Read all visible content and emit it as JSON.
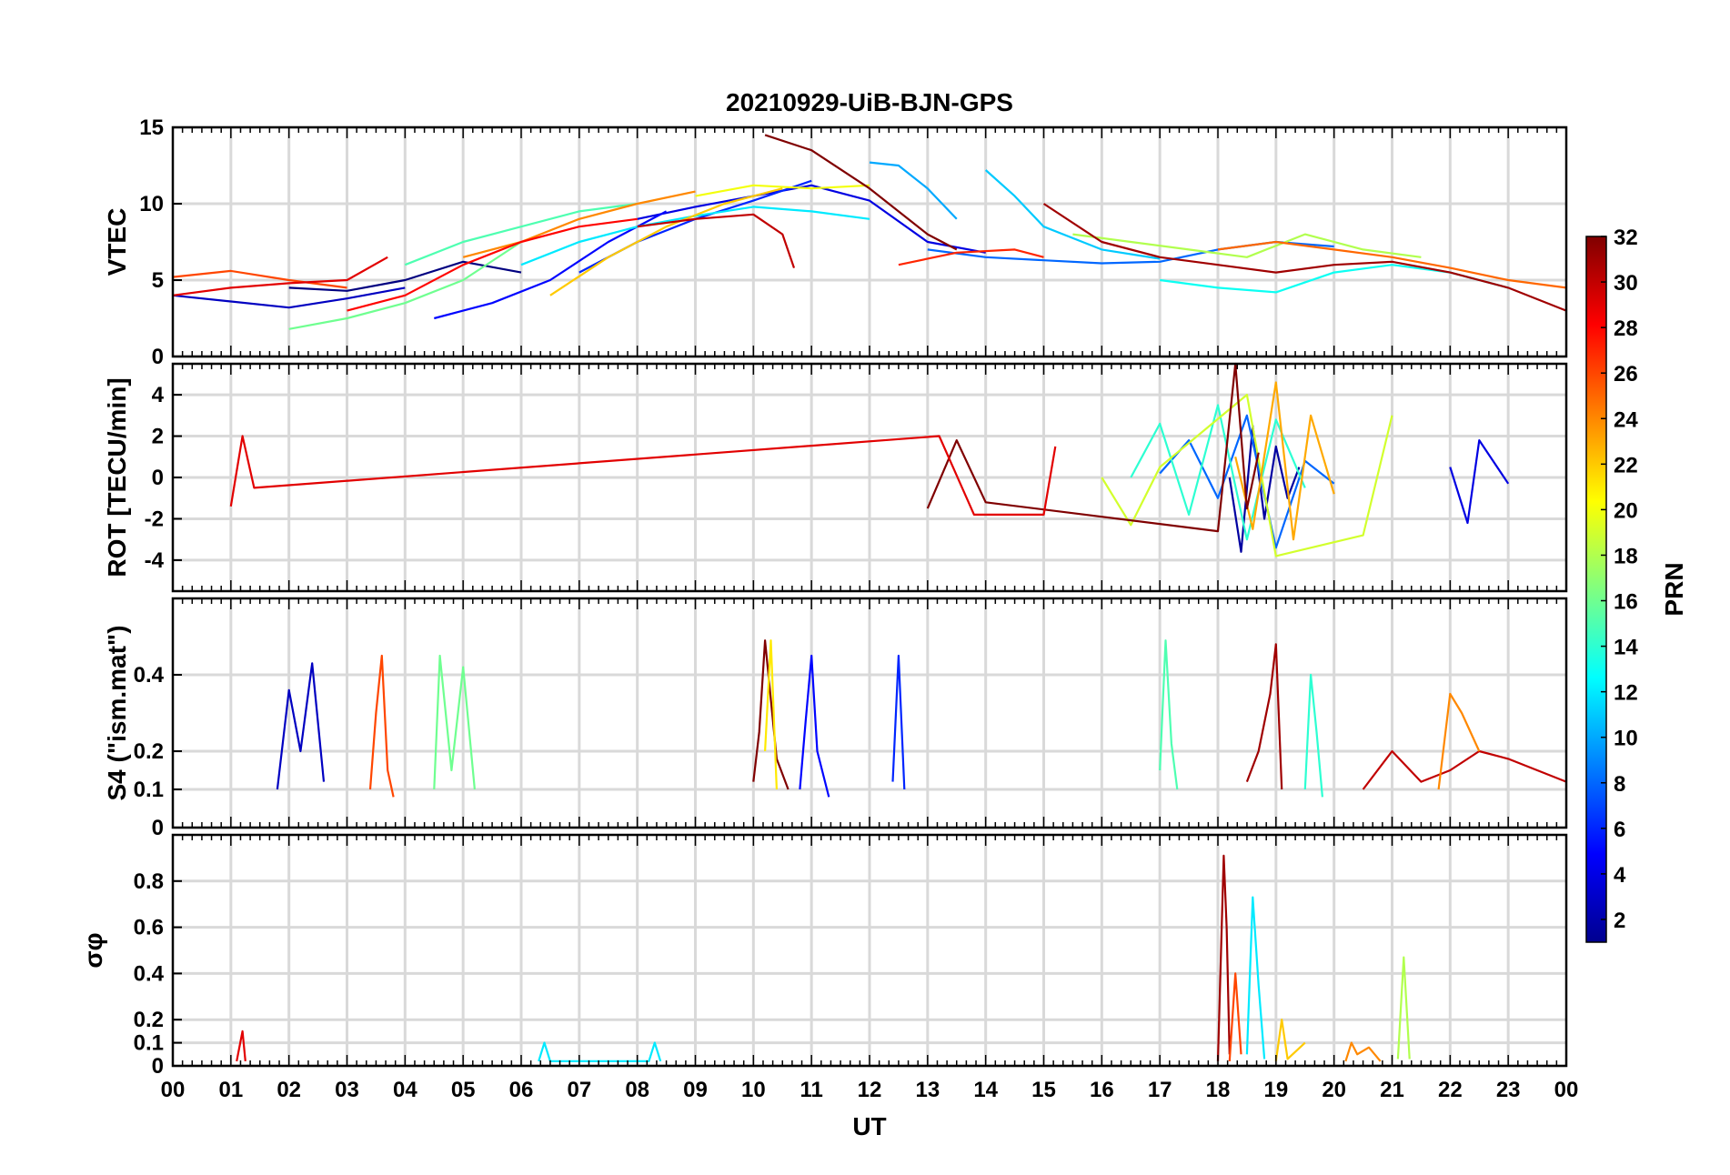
{
  "chart_data": [
    {
      "panel": "vtec",
      "type": "line",
      "title": "20210929-UiB-BJN-GPS",
      "ylabel": "VTEC",
      "ylim": [
        0,
        15
      ],
      "yticks": [
        "0",
        "5",
        "10",
        "15"
      ],
      "ytick_values": [
        0,
        5,
        10,
        15
      ],
      "grid": true,
      "series": [
        {
          "prn": 1,
          "x": [
            2.0,
            3.0,
            4.0,
            5.0,
            6.0
          ],
          "y": [
            4.5,
            4.3,
            5.0,
            6.2,
            5.5
          ]
        },
        {
          "prn": 3,
          "x": [
            0.0,
            1.0,
            2.0,
            3.0,
            4.0
          ],
          "y": [
            4.0,
            3.6,
            3.2,
            3.8,
            4.5
          ]
        },
        {
          "prn": 4,
          "x": [
            8.0,
            9.0,
            10.0,
            11.0,
            12.0,
            13.0,
            14.0
          ],
          "y": [
            9.0,
            9.8,
            10.5,
            11.2,
            10.2,
            7.5,
            6.8
          ]
        },
        {
          "prn": 5,
          "x": [
            4.5,
            5.5,
            6.5,
            7.5,
            8.5
          ],
          "y": [
            2.5,
            3.5,
            5.0,
            7.5,
            9.5
          ]
        },
        {
          "prn": 6,
          "x": [
            7.0,
            8.0,
            9.0,
            10.0,
            11.0
          ],
          "y": [
            5.5,
            7.5,
            9.0,
            10.2,
            11.5
          ]
        },
        {
          "prn": 8,
          "x": [
            13.0,
            14.0,
            15.0,
            16.0,
            17.0,
            18.0,
            19.0,
            20.0
          ],
          "y": [
            7.0,
            6.5,
            6.3,
            6.1,
            6.2,
            7.0,
            7.5,
            7.2
          ]
        },
        {
          "prn": 10,
          "x": [
            12.0,
            12.5,
            13.0,
            13.5
          ],
          "y": [
            12.7,
            12.5,
            11.0,
            9.0
          ]
        },
        {
          "prn": 11,
          "x": [
            14.0,
            14.5,
            15.0,
            16.0,
            17.0
          ],
          "y": [
            12.2,
            10.5,
            8.5,
            7.0,
            6.4
          ]
        },
        {
          "prn": 12,
          "x": [
            6.0,
            7.0,
            8.0,
            9.0,
            10.0,
            11.0,
            12.0
          ],
          "y": [
            6.0,
            7.5,
            8.5,
            9.2,
            9.8,
            9.5,
            9.0
          ]
        },
        {
          "prn": 13,
          "x": [
            17.0,
            18.0,
            19.0,
            20.0,
            21.0,
            22.0,
            23.0
          ],
          "y": [
            5.0,
            4.5,
            4.2,
            5.5,
            6.0,
            5.5,
            4.5
          ]
        },
        {
          "prn": 15,
          "x": [
            4.0,
            5.0,
            6.0,
            7.0,
            8.0
          ],
          "y": [
            6.0,
            7.5,
            8.5,
            9.5,
            10.0
          ]
        },
        {
          "prn": 16,
          "x": [
            2.0,
            3.0,
            4.0,
            5.0,
            6.0
          ],
          "y": [
            1.8,
            2.5,
            3.5,
            5.0,
            7.5
          ]
        },
        {
          "prn": 18,
          "x": [
            15.5,
            16.5,
            17.5,
            18.5,
            19.5,
            20.5,
            21.5
          ],
          "y": [
            8.0,
            7.5,
            7.0,
            6.5,
            8.0,
            7.0,
            6.5
          ]
        },
        {
          "prn": 20,
          "x": [
            9.0,
            10.0,
            11.0,
            12.0
          ],
          "y": [
            10.5,
            11.2,
            11.0,
            11.2
          ]
        },
        {
          "prn": 22,
          "x": [
            6.5,
            7.5,
            8.5,
            9.5,
            10.5
          ],
          "y": [
            4.0,
            6.5,
            8.5,
            10.0,
            11.0
          ]
        },
        {
          "prn": 24,
          "x": [
            5.0,
            6.0,
            7.0,
            8.0,
            9.0
          ],
          "y": [
            6.5,
            7.5,
            9.0,
            10.0,
            10.8
          ]
        },
        {
          "prn": 25,
          "x": [
            18.0,
            19.0,
            20.0,
            21.0,
            22.0,
            23.0,
            24.0
          ],
          "y": [
            7.0,
            7.5,
            7.0,
            6.5,
            5.8,
            5.0,
            4.5
          ]
        },
        {
          "prn": 26,
          "x": [
            0.0,
            1.0,
            2.0,
            3.0
          ],
          "y": [
            5.2,
            5.6,
            5.0,
            4.5
          ]
        },
        {
          "prn": 27,
          "x": [
            12.5,
            13.5,
            14.5,
            15.0
          ],
          "y": [
            6.0,
            6.8,
            7.0,
            6.5
          ]
        },
        {
          "prn": 28,
          "x": [
            3.0,
            4.0,
            5.0,
            6.0,
            7.0,
            8.0
          ],
          "y": [
            3.0,
            4.0,
            6.0,
            7.5,
            8.5,
            9.0
          ]
        },
        {
          "prn": 29,
          "x": [
            0.0,
            1.0,
            2.0,
            3.0,
            3.7
          ],
          "y": [
            4.0,
            4.5,
            4.8,
            5.0,
            6.5
          ]
        },
        {
          "prn": 31,
          "x": [
            15.0,
            16.0,
            17.0,
            18.0,
            19.0,
            20.0,
            21.0,
            22.0,
            23.0,
            24.0
          ],
          "y": [
            10.0,
            7.5,
            6.5,
            6.0,
            5.5,
            6.0,
            6.2,
            5.5,
            4.5,
            3.0
          ]
        },
        {
          "prn": 32,
          "x": [
            10.2,
            11.0,
            12.0,
            13.0,
            13.5
          ],
          "y": [
            14.5,
            13.5,
            11.0,
            8.0,
            7.0
          ]
        },
        {
          "prn": 30,
          "x": [
            8.0,
            9.0,
            10.0,
            10.5,
            10.7
          ],
          "y": [
            8.5,
            9.0,
            9.3,
            8.0,
            5.8
          ]
        }
      ]
    },
    {
      "panel": "rot",
      "type": "line",
      "ylabel": "ROT [TECU/min]",
      "ylim": [
        -5.5,
        5.5
      ],
      "yticks": [
        "-4",
        "-2",
        "0",
        "2",
        "4"
      ],
      "ytick_values": [
        -4,
        -2,
        0,
        2,
        4
      ],
      "grid": true,
      "series": [
        {
          "prn": 2,
          "x": [
            18.2,
            18.4,
            18.6,
            18.8,
            19.0,
            19.2,
            19.4
          ],
          "y": [
            0.0,
            -3.6,
            2.5,
            -2.0,
            1.5,
            -1.0,
            0.5
          ]
        },
        {
          "prn": 8,
          "x": [
            17.0,
            17.5,
            18.0,
            18.5,
            19.0,
            19.5,
            20.0
          ],
          "y": [
            0.2,
            1.8,
            -1.0,
            3.0,
            -3.4,
            0.8,
            -0.3
          ]
        },
        {
          "prn": 14,
          "x": [
            16.5,
            17.0,
            17.5,
            18.0,
            18.5,
            19.0,
            19.5
          ],
          "y": [
            0.0,
            2.6,
            -1.8,
            3.5,
            -3.0,
            2.8,
            -0.5
          ]
        },
        {
          "prn": 19,
          "x": [
            16.0,
            16.5,
            17.0,
            18.5,
            19.0,
            20.5,
            21.0
          ],
          "y": [
            0.0,
            -2.3,
            0.5,
            4.0,
            -3.8,
            -2.8,
            3.0
          ]
        },
        {
          "prn": 23,
          "x": [
            18.3,
            18.6,
            19.0,
            19.3,
            19.6,
            20.0
          ],
          "y": [
            1.0,
            -2.5,
            4.6,
            -3.0,
            3.0,
            -0.8
          ]
        },
        {
          "prn": 32,
          "x": [
            13.0,
            13.5,
            14.0,
            18.0,
            18.3,
            18.5,
            18.7
          ],
          "y": [
            -1.5,
            1.8,
            -1.2,
            -2.6,
            5.5,
            -1.5,
            1.2
          ]
        },
        {
          "prn": 29,
          "x": [
            1.0,
            1.2,
            1.4,
            13.2,
            13.8,
            15.0,
            15.2
          ],
          "y": [
            -1.4,
            2.0,
            -0.5,
            2.0,
            -1.8,
            -1.8,
            1.5
          ]
        },
        {
          "prn": 4,
          "x": [
            22.0,
            22.3,
            22.5,
            23.0
          ],
          "y": [
            0.5,
            -2.2,
            1.8,
            -0.3
          ]
        }
      ]
    },
    {
      "panel": "s4",
      "type": "line",
      "ylabel": "S4 (\"ism.mat\")",
      "ylim": [
        0,
        0.6
      ],
      "yticks": [
        "0",
        "0.1",
        "0.2",
        "0.4"
      ],
      "ytick_values": [
        0,
        0.1,
        0.2,
        0.4
      ],
      "grid": true,
      "series": [
        {
          "prn": 3,
          "x": [
            1.8,
            2.0,
            2.2,
            2.4,
            2.6
          ],
          "y": [
            0.1,
            0.36,
            0.2,
            0.43,
            0.12
          ]
        },
        {
          "prn": 26,
          "x": [
            3.4,
            3.5,
            3.6,
            3.7,
            3.8
          ],
          "y": [
            0.1,
            0.3,
            0.45,
            0.15,
            0.08
          ]
        },
        {
          "prn": 16,
          "x": [
            4.5,
            4.6,
            4.8,
            5.0,
            5.2
          ],
          "y": [
            0.1,
            0.45,
            0.15,
            0.42,
            0.1
          ]
        },
        {
          "prn": 32,
          "x": [
            10.0,
            10.1,
            10.2,
            10.4,
            10.6
          ],
          "y": [
            0.12,
            0.25,
            0.49,
            0.18,
            0.1
          ]
        },
        {
          "prn": 5,
          "x": [
            10.8,
            10.9,
            11.0,
            11.1,
            11.3
          ],
          "y": [
            0.1,
            0.28,
            0.45,
            0.2,
            0.08
          ]
        },
        {
          "prn": 21,
          "x": [
            10.2,
            10.3,
            10.4
          ],
          "y": [
            0.2,
            0.49,
            0.1
          ]
        },
        {
          "prn": 6,
          "x": [
            12.4,
            12.5,
            12.6
          ],
          "y": [
            0.12,
            0.45,
            0.1
          ]
        },
        {
          "prn": 15,
          "x": [
            17.0,
            17.1,
            17.2,
            17.3
          ],
          "y": [
            0.15,
            0.49,
            0.22,
            0.1
          ]
        },
        {
          "prn": 31,
          "x": [
            18.5,
            18.7,
            18.9,
            19.0,
            19.1
          ],
          "y": [
            0.12,
            0.2,
            0.35,
            0.48,
            0.1
          ]
        },
        {
          "prn": 14,
          "x": [
            19.5,
            19.6,
            19.7,
            19.8
          ],
          "y": [
            0.1,
            0.4,
            0.25,
            0.08
          ]
        },
        {
          "prn": 30,
          "x": [
            20.5,
            21.0,
            21.5,
            22.0,
            22.5,
            23.0,
            23.5,
            24.0
          ],
          "y": [
            0.1,
            0.2,
            0.12,
            0.15,
            0.2,
            0.18,
            0.15,
            0.12
          ]
        },
        {
          "prn": 24,
          "x": [
            21.8,
            22.0,
            22.2,
            22.5
          ],
          "y": [
            0.1,
            0.35,
            0.3,
            0.2
          ]
        }
      ]
    },
    {
      "panel": "sigma_phi",
      "type": "line",
      "ylabel": "σφ",
      "ylim": [
        0,
        1.0
      ],
      "yticks": [
        "0",
        "0.1",
        "0.2",
        "0.4",
        "0.6",
        "0.8"
      ],
      "ytick_values": [
        0,
        0.1,
        0.2,
        0.4,
        0.6,
        0.8
      ],
      "xlabel": "UT",
      "xticks": [
        "00",
        "01",
        "02",
        "03",
        "04",
        "05",
        "06",
        "07",
        "08",
        "09",
        "10",
        "11",
        "12",
        "13",
        "14",
        "15",
        "16",
        "17",
        "18",
        "19",
        "20",
        "21",
        "22",
        "23",
        "00"
      ],
      "xlim": [
        0,
        24
      ],
      "grid": true,
      "series": [
        {
          "prn": 31,
          "x": [
            18.0,
            18.1,
            18.15,
            18.2
          ],
          "y": [
            0.02,
            0.91,
            0.6,
            0.05
          ]
        },
        {
          "prn": 26,
          "x": [
            18.2,
            18.3,
            18.4
          ],
          "y": [
            0.02,
            0.4,
            0.05
          ]
        },
        {
          "prn": 12,
          "x": [
            18.5,
            18.6,
            18.7,
            18.8
          ],
          "y": [
            0.05,
            0.73,
            0.35,
            0.03
          ]
        },
        {
          "prn": 22,
          "x": [
            19.0,
            19.1,
            19.2,
            19.5
          ],
          "y": [
            0.02,
            0.2,
            0.03,
            0.1
          ]
        },
        {
          "prn": 18,
          "x": [
            21.1,
            21.2,
            21.3
          ],
          "y": [
            0.03,
            0.47,
            0.03
          ]
        },
        {
          "prn": 29,
          "x": [
            1.1,
            1.2,
            1.25
          ],
          "y": [
            0.02,
            0.15,
            0.02
          ]
        },
        {
          "prn": 12,
          "x": [
            6.3,
            6.4,
            6.5,
            8.2,
            8.3,
            8.4
          ],
          "y": [
            0.02,
            0.1,
            0.02,
            0.02,
            0.1,
            0.02
          ]
        },
        {
          "prn": 24,
          "x": [
            20.2,
            20.3,
            20.4,
            20.6,
            20.8
          ],
          "y": [
            0.02,
            0.1,
            0.05,
            0.08,
            0.02
          ]
        }
      ]
    }
  ],
  "colorbar": {
    "label": "PRN",
    "ticks": [
      "2",
      "4",
      "6",
      "8",
      "10",
      "12",
      "14",
      "16",
      "18",
      "20",
      "22",
      "24",
      "26",
      "28",
      "30",
      "32"
    ],
    "tick_values": [
      2,
      4,
      6,
      8,
      10,
      12,
      14,
      16,
      18,
      20,
      22,
      24,
      26,
      28,
      30,
      32
    ],
    "range": [
      1,
      32
    ],
    "colormap": "jet"
  },
  "colors": {
    "axis": "#000000",
    "grid": "#d9d9d9",
    "background": "#ffffff"
  }
}
